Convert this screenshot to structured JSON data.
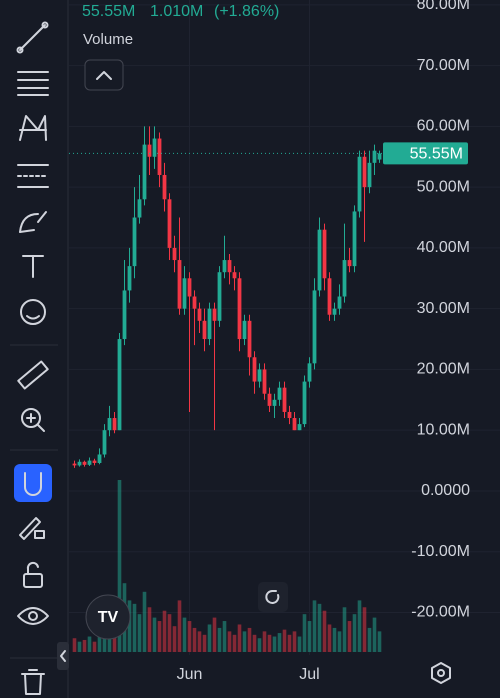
{
  "legend": {
    "price": "55.55M",
    "change": "1.010M",
    "change_pct": "(+1.86%)",
    "study": "Volume"
  },
  "chart": {
    "type": "candlestick",
    "ylim": [
      -27,
      80.8
    ],
    "yticks": [
      {
        "value": 80,
        "label": "80.00M"
      },
      {
        "value": 70,
        "label": "70.00M"
      },
      {
        "value": 60,
        "label": "60.00M"
      },
      {
        "value": 50,
        "label": "50.00M"
      },
      {
        "value": 40,
        "label": "40.00M"
      },
      {
        "value": 30,
        "label": "30.00M"
      },
      {
        "value": 20,
        "label": "20.00M"
      },
      {
        "value": 10,
        "label": "10.00M"
      },
      {
        "value": 0,
        "label": "0.0000"
      },
      {
        "value": -10,
        "label": "-10.00M"
      },
      {
        "value": -20,
        "label": "-20.00M"
      }
    ],
    "xticks": [
      {
        "value": 23,
        "label": "Jun"
      },
      {
        "value": 47,
        "label": "Jul"
      }
    ],
    "last_price": {
      "value": 55.55,
      "label": "55.55M"
    },
    "up_color": "#22ab94",
    "down_color": "#f23645",
    "open": [
      4.5,
      4.2,
      4.8,
      4.3,
      5,
      4.6,
      6,
      10,
      12,
      10,
      25,
      33,
      37,
      45,
      48,
      57,
      55,
      58,
      52,
      48,
      40,
      38,
      30,
      35,
      32,
      30,
      28,
      25,
      30,
      28,
      36,
      38,
      36,
      35,
      25,
      28,
      22,
      18,
      20,
      16,
      14,
      15,
      17,
      13,
      12,
      10,
      11,
      18,
      21,
      33,
      43,
      35,
      29,
      30,
      32,
      38,
      37,
      46,
      55,
      50,
      54,
      54.54
    ],
    "high": [
      5,
      5.2,
      5,
      5.5,
      5.3,
      7,
      11,
      14,
      13,
      26,
      38,
      40,
      50,
      52,
      60,
      60,
      60,
      59,
      54,
      49,
      42,
      45,
      37,
      36,
      33,
      31,
      30,
      31,
      31,
      37,
      42,
      39,
      37,
      36,
      29,
      29,
      23,
      21,
      21,
      17,
      16,
      18,
      18,
      14,
      13,
      12,
      19,
      22,
      35,
      45,
      44,
      36,
      31,
      34,
      44,
      40,
      47,
      56,
      56,
      56,
      57,
      56
    ],
    "low": [
      3.8,
      4,
      4,
      4.1,
      4.2,
      4.4,
      5.5,
      9,
      9.5,
      10,
      24,
      31,
      35,
      44,
      47,
      52,
      53,
      50,
      46,
      38,
      36,
      29,
      29,
      13,
      24,
      26,
      23,
      24,
      10,
      27,
      35,
      34,
      33,
      23,
      24,
      19,
      16,
      17,
      15,
      13,
      12,
      14,
      12,
      11,
      10,
      10,
      10.5,
      17,
      20,
      32,
      33,
      28,
      28,
      29,
      31,
      36,
      36,
      45,
      41,
      49,
      52,
      54
    ],
    "close": [
      4.2,
      4.8,
      4.3,
      5,
      4.6,
      6,
      10,
      12,
      10,
      25,
      33,
      37,
      45,
      48,
      57,
      55,
      58,
      52,
      48,
      40,
      38,
      30,
      35,
      32,
      30,
      28,
      25,
      30,
      28,
      36,
      38,
      36,
      35,
      25,
      28,
      22,
      18,
      20,
      16,
      14,
      15,
      17,
      13,
      12,
      10,
      11,
      18,
      21,
      33,
      43,
      35,
      29,
      30,
      32,
      38,
      37,
      46,
      55,
      50,
      54,
      56,
      55.55
    ],
    "volume_lim": [
      0,
      100
    ],
    "volume": [
      8,
      6,
      7,
      9,
      6,
      12,
      18,
      25,
      15,
      100,
      40,
      30,
      28,
      22,
      35,
      26,
      20,
      18,
      24,
      22,
      15,
      30,
      20,
      18,
      14,
      12,
      10,
      16,
      20,
      14,
      18,
      12,
      10,
      16,
      12,
      14,
      10,
      8,
      12,
      10,
      9,
      11,
      13,
      10,
      12,
      9,
      22,
      18,
      30,
      28,
      24,
      16,
      14,
      12,
      26,
      18,
      22,
      30,
      26,
      14,
      20,
      12
    ]
  }
}
